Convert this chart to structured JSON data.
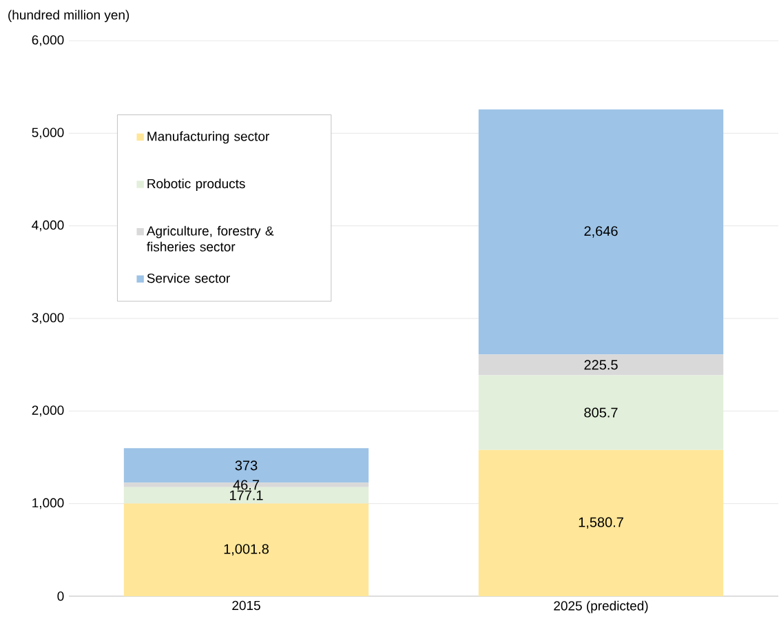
{
  "chart_data": {
    "type": "bar",
    "stacked": true,
    "ylabel": "(hundred million yen)",
    "categories": [
      "2015",
      "2025 (predicted)"
    ],
    "series": [
      {
        "name": "Manufacturing sector",
        "color": "#ffe699",
        "values": [
          1001.8,
          1580.7
        ],
        "value_labels": [
          "1,001.8",
          "1,580.7"
        ]
      },
      {
        "name": "Robotic products",
        "color": "#e2efda",
        "values": [
          177.1,
          805.7
        ],
        "value_labels": [
          "177.1",
          "805.7"
        ]
      },
      {
        "name": "Agriculture, forestry & fisheries sector",
        "color": "#d9d9d9",
        "values": [
          46.7,
          225.5
        ],
        "value_labels": [
          "46.7",
          "225.5"
        ]
      },
      {
        "name": "Service sector",
        "color": "#9dc3e6",
        "values": [
          373,
          2646
        ],
        "value_labels": [
          "373",
          "2,646"
        ]
      }
    ],
    "ylim": [
      0,
      6000
    ],
    "yticks": [
      0,
      {
        "value": 1000,
        "label": "1,000"
      },
      {
        "value": 2000,
        "label": "2,000"
      },
      {
        "value": 3000,
        "label": "3,000"
      },
      {
        "value": 4000,
        "label": "4,000"
      },
      {
        "value": 5000,
        "label": "5,000"
      },
      {
        "value": 6000,
        "label": "6,000"
      }
    ],
    "grid": "y",
    "legend": "top left"
  }
}
